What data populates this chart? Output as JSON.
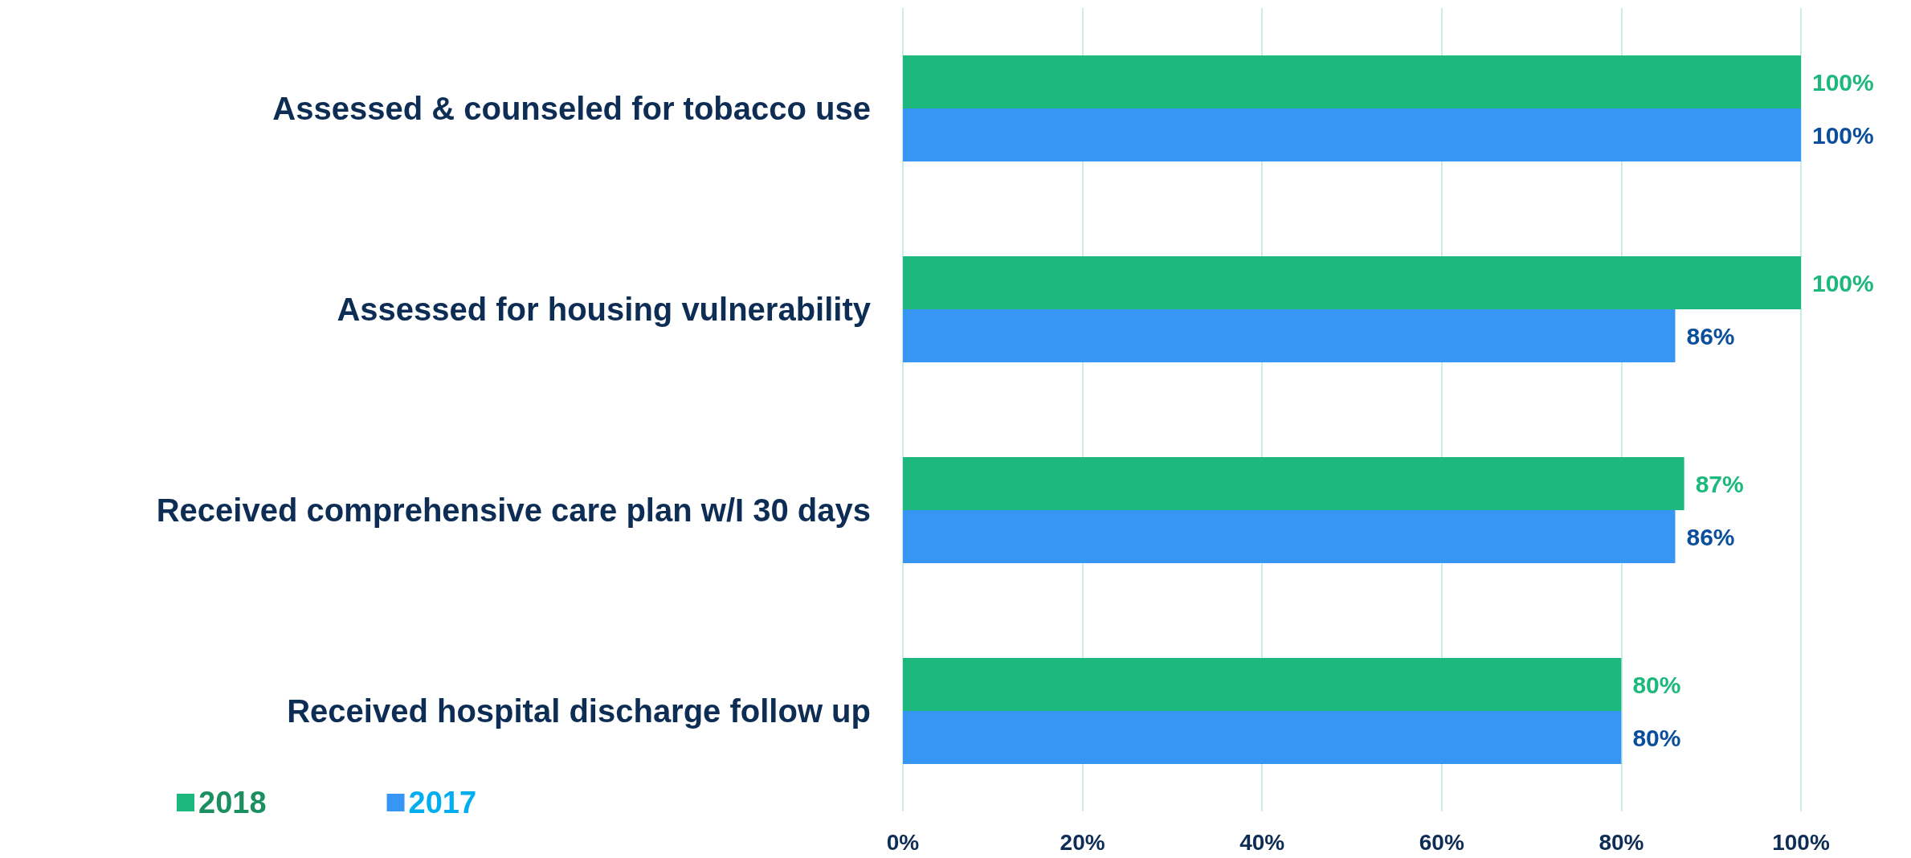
{
  "chart_data": {
    "type": "bar",
    "orientation": "horizontal",
    "categories": [
      "Assessed & counseled for tobacco use",
      "Assessed for housing vulnerability",
      "Received comprehensive care plan w/I 30 days",
      "Received hospital discharge follow up"
    ],
    "series": [
      {
        "name": "2018",
        "color": "#1db87e",
        "values": [
          100,
          100,
          87,
          80
        ],
        "value_labels": [
          "100%",
          "100%",
          "87%",
          "80%"
        ]
      },
      {
        "name": "2017",
        "color": "#3796f3",
        "values": [
          100,
          86,
          86,
          80
        ],
        "value_labels": [
          "100%",
          "86%",
          "86%",
          "80%"
        ]
      }
    ],
    "xlim": [
      0,
      100
    ],
    "xticks": [
      {
        "value": 0,
        "label": "0%"
      },
      {
        "value": 20,
        "label": "20%"
      },
      {
        "value": 40,
        "label": "40%"
      },
      {
        "value": 60,
        "label": "60%"
      },
      {
        "value": 80,
        "label": "80%"
      },
      {
        "value": 100,
        "label": "100%"
      }
    ],
    "grid": "x",
    "legend": "bottom left"
  }
}
